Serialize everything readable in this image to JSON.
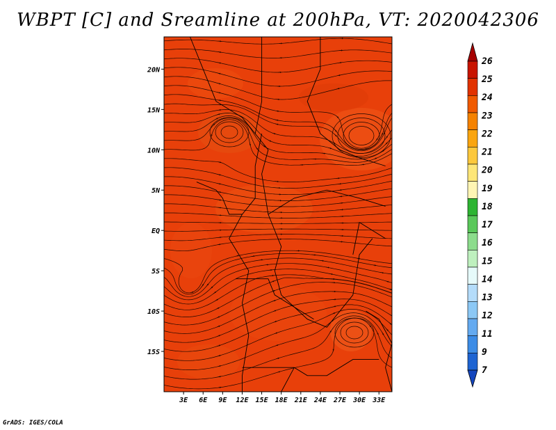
{
  "title": "WBPT [C] and Sreamline at 200hPa, VT: 2020042306",
  "credit": "GrADS: IGES/COLA",
  "field_color": "#e8400a",
  "map": {
    "lon_range": [
      0,
      35
    ],
    "lat_range": [
      -20,
      24
    ],
    "lon_ticks": [
      {
        "v": 3,
        "label": "3E"
      },
      {
        "v": 6,
        "label": "6E"
      },
      {
        "v": 9,
        "label": "9E"
      },
      {
        "v": 12,
        "label": "12E"
      },
      {
        "v": 15,
        "label": "15E"
      },
      {
        "v": 18,
        "label": "18E"
      },
      {
        "v": 21,
        "label": "21E"
      },
      {
        "v": 24,
        "label": "24E"
      },
      {
        "v": 27,
        "label": "27E"
      },
      {
        "v": 30,
        "label": "30E"
      },
      {
        "v": 33,
        "label": "33E"
      }
    ],
    "lat_ticks": [
      {
        "v": 20,
        "label": "20N"
      },
      {
        "v": 15,
        "label": "15N"
      },
      {
        "v": 10,
        "label": "10N"
      },
      {
        "v": 5,
        "label": "5N"
      },
      {
        "v": 0,
        "label": "EQ"
      },
      {
        "v": -5,
        "label": "5S"
      },
      {
        "v": -10,
        "label": "10S"
      },
      {
        "v": -15,
        "label": "15S"
      }
    ]
  },
  "colorbar": {
    "labels": [
      "26",
      "25",
      "24",
      "23",
      "22",
      "21",
      "20",
      "19",
      "18",
      "17",
      "16",
      "15",
      "14",
      "13",
      "12",
      "11",
      "9",
      "7"
    ],
    "colors": [
      "#a50000",
      "#c81400",
      "#e13200",
      "#f05a00",
      "#f58200",
      "#faa50f",
      "#fcc83c",
      "#fde678",
      "#fff5b4",
      "#2db432",
      "#5ac85a",
      "#8cdc8c",
      "#bef0be",
      "#e6fafa",
      "#b4dcfa",
      "#8cc8f5",
      "#64aaf0",
      "#3c8ce6",
      "#1e64d2",
      "#1446be"
    ]
  }
}
